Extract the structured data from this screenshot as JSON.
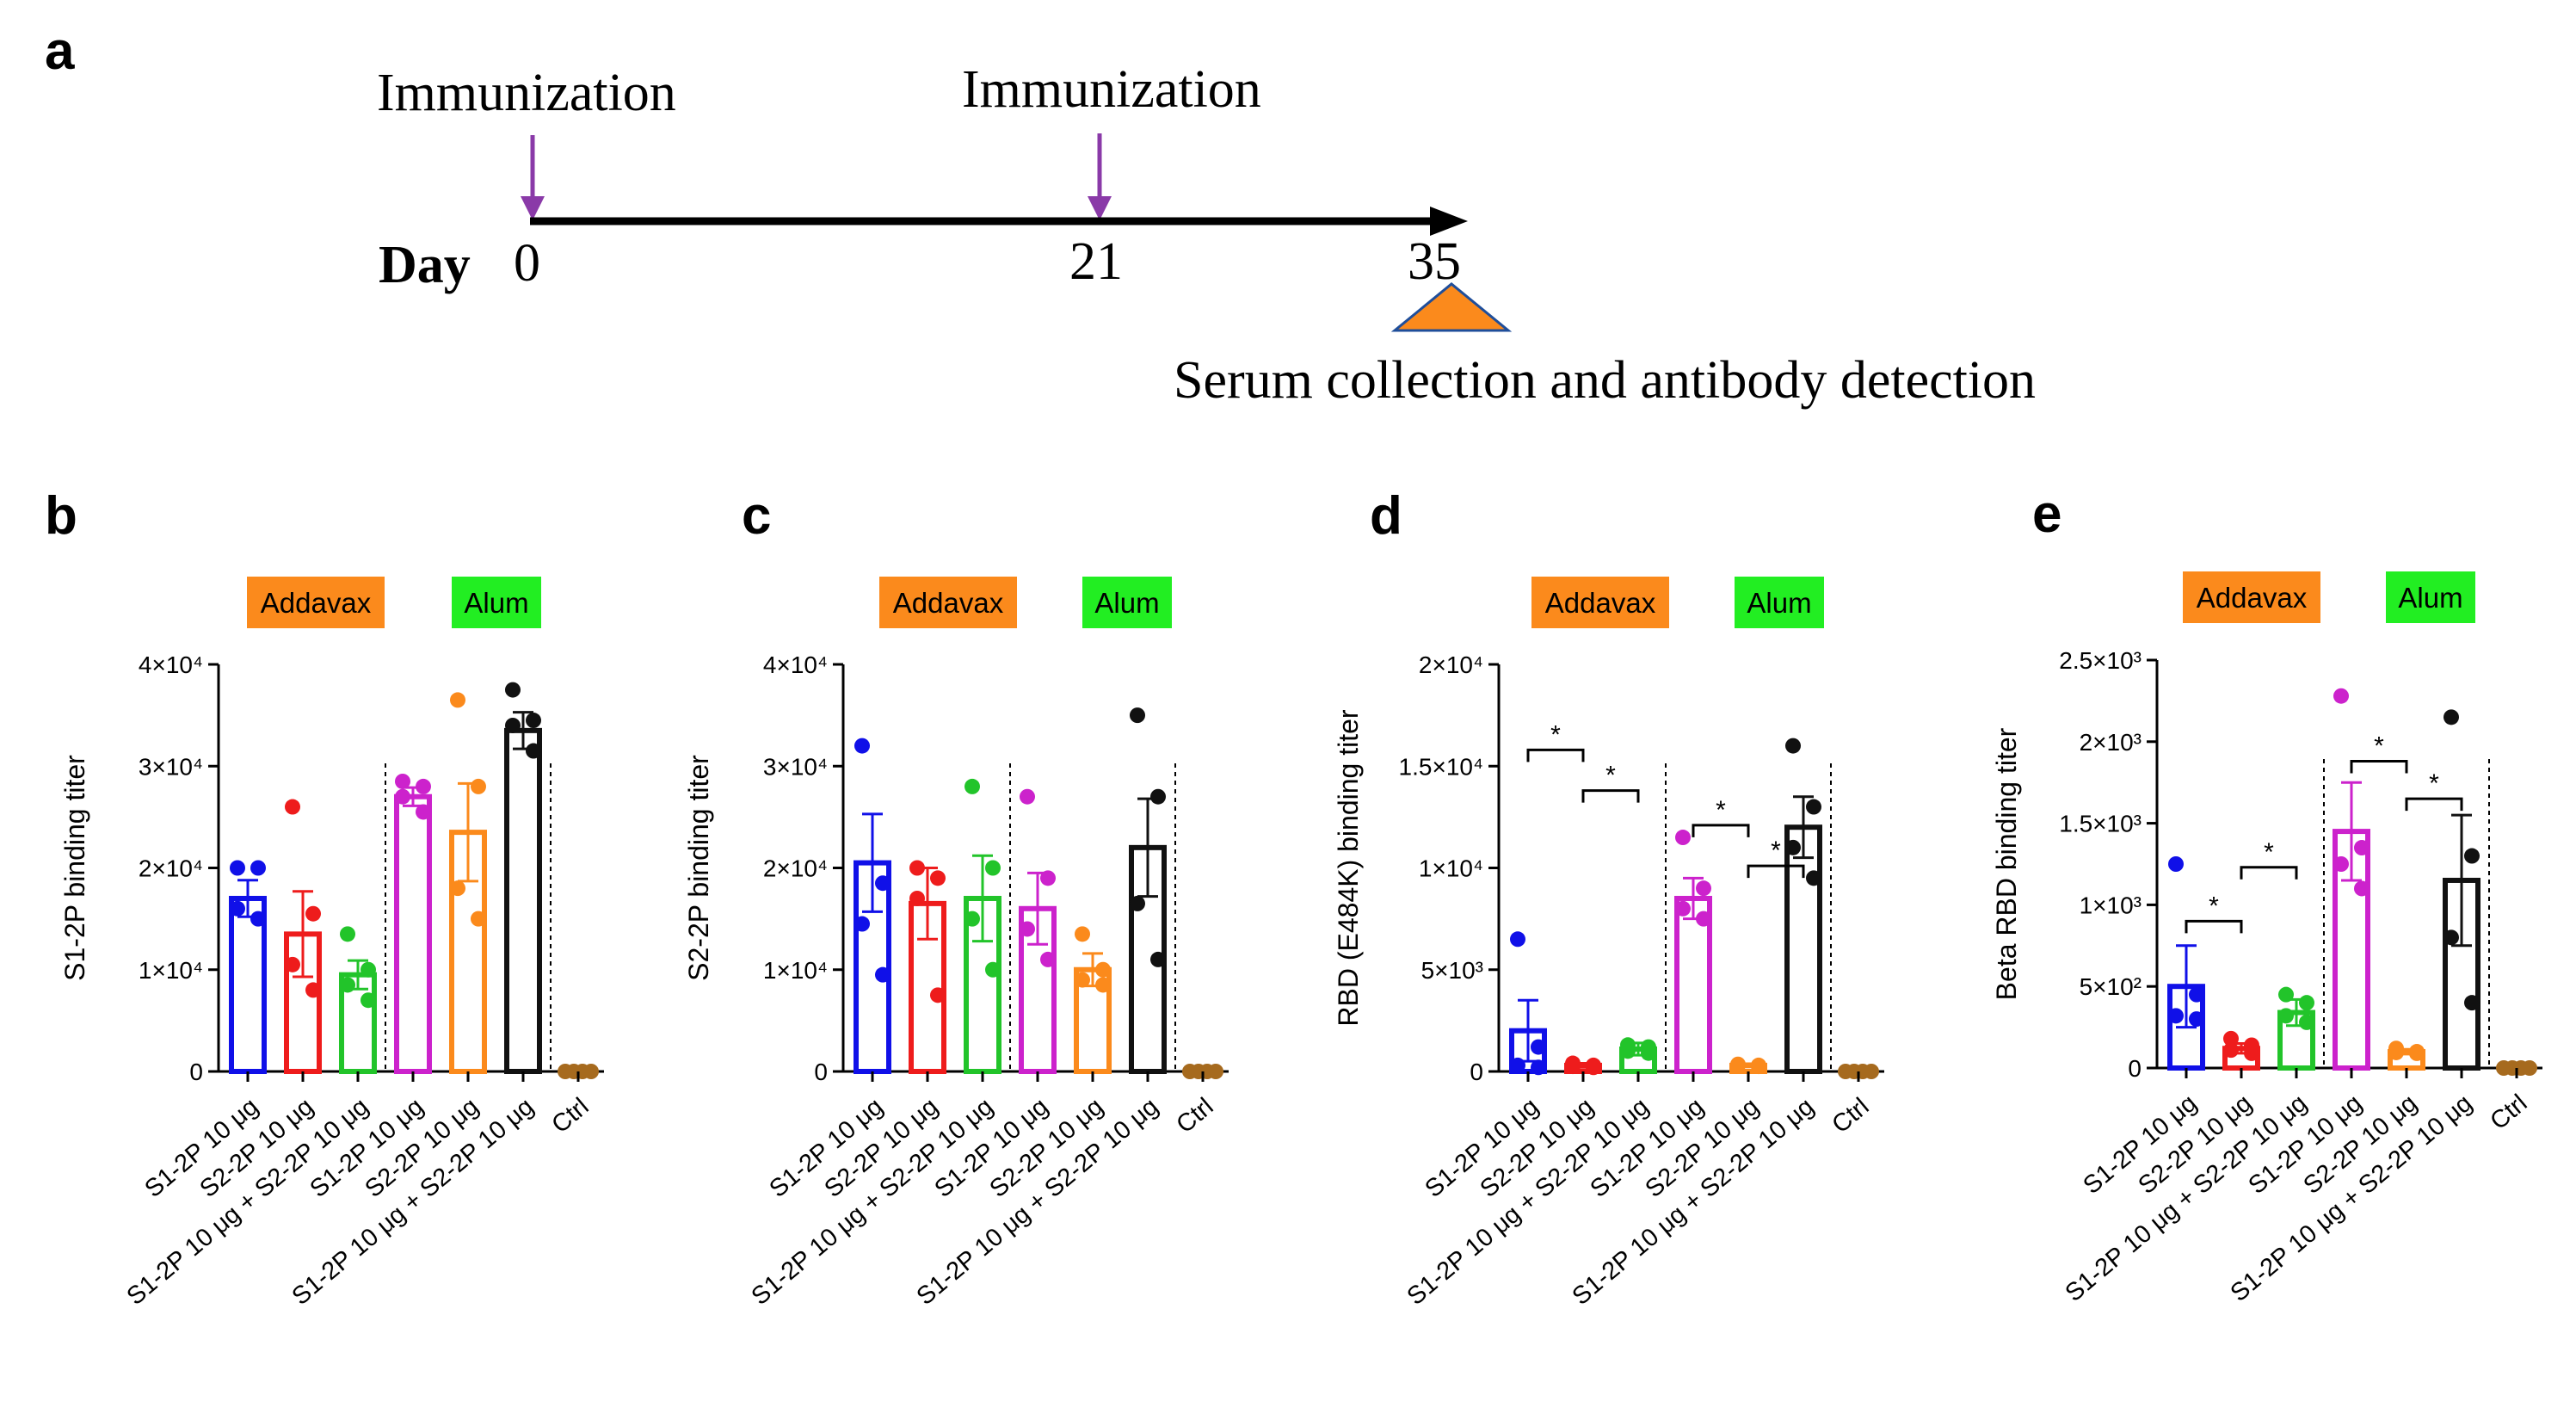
{
  "colors": {
    "blue": "#1010e8",
    "red": "#ee1c1c",
    "green": "#22c42a",
    "magenta": "#cc22cc",
    "orange": "#fb8a1c",
    "black": "#111111",
    "brown": "#a66a1e",
    "purple": "#8a3aa8",
    "addavax_bg": "#fb8a1c",
    "alum_bg": "#22ee22"
  },
  "panel_a": {
    "letter": "a",
    "day_label": "Day",
    "days": [
      "0",
      "21",
      "35"
    ],
    "immunization_label": "Immunization",
    "immunization_days": [
      "0",
      "21"
    ],
    "serum_label": "Serum collection and antibody detection"
  },
  "chart_data": [
    {
      "panel": "b",
      "type": "bar",
      "ylabel": "S1-2P binding titer",
      "ylim": [
        0,
        40000
      ],
      "yticks": [
        0,
        10000,
        20000,
        30000,
        40000
      ],
      "ytick_labels": [
        "0",
        "1×10⁴",
        "2×10⁴",
        "3×10⁴",
        "4×10⁴"
      ],
      "adjuvant_labels": [
        "Addavax",
        "Alum"
      ],
      "categories": [
        "S1-2P 10 μg",
        "S2-2P 10 μg",
        "S1-2P 10 μg + S2-2P 10 μg",
        "S1-2P 10 μg",
        "S2-2P 10 μg",
        "S1-2P 10 μg + S2-2P 10 μg",
        "Ctrl"
      ],
      "colors": [
        "blue",
        "red",
        "green",
        "magenta",
        "orange",
        "black",
        "brown"
      ],
      "values": [
        17000,
        13500,
        9500,
        27000,
        23500,
        33500,
        0
      ],
      "errors": [
        1800,
        4200,
        1400,
        900,
        4800,
        1800,
        0
      ],
      "points": [
        [
          20000,
          20000,
          16000,
          15000
        ],
        [
          26000,
          15500,
          10500,
          8000
        ],
        [
          13500,
          10000,
          8500,
          7000
        ],
        [
          28500,
          28000,
          27000,
          25500
        ],
        [
          36500,
          28000,
          18000,
          15000
        ],
        [
          37500,
          34500,
          34000,
          31500
        ],
        [
          0,
          0,
          0,
          0
        ]
      ],
      "significance": []
    },
    {
      "panel": "c",
      "type": "bar",
      "ylabel": "S2-2P binding titer",
      "ylim": [
        0,
        40000
      ],
      "yticks": [
        0,
        10000,
        20000,
        30000,
        40000
      ],
      "ytick_labels": [
        "0",
        "1×10⁴",
        "2×10⁴",
        "3×10⁴",
        "4×10⁴"
      ],
      "adjuvant_labels": [
        "Addavax",
        "Alum"
      ],
      "categories": [
        "S1-2P 10 μg",
        "S2-2P 10 μg",
        "S1-2P 10 μg + S2-2P 10 μg",
        "S1-2P 10 μg",
        "S2-2P 10 μg",
        "S1-2P 10 μg + S2-2P 10 μg",
        "Ctrl"
      ],
      "colors": [
        "blue",
        "red",
        "green",
        "magenta",
        "orange",
        "black",
        "brown"
      ],
      "values": [
        20500,
        16500,
        17000,
        16000,
        10000,
        22000,
        0
      ],
      "errors": [
        4800,
        3500,
        4200,
        3500,
        1600,
        4800,
        0
      ],
      "points": [
        [
          32000,
          18500,
          14500,
          9500
        ],
        [
          20000,
          19000,
          17000,
          7500
        ],
        [
          28000,
          20000,
          15000,
          10000
        ],
        [
          27000,
          19000,
          14000,
          11000
        ],
        [
          13500,
          10000,
          9000,
          8500
        ],
        [
          35000,
          27000,
          16500,
          11000
        ],
        [
          0,
          0,
          0,
          0
        ]
      ],
      "significance": []
    },
    {
      "panel": "d",
      "type": "bar",
      "ylabel": "RBD (E484K) binding titer",
      "ylim": [
        0,
        20000
      ],
      "yticks": [
        0,
        5000,
        10000,
        15000,
        20000
      ],
      "ytick_labels": [
        "0",
        "5×10³",
        "1×10⁴",
        "1.5×10⁴",
        "2×10⁴"
      ],
      "adjuvant_labels": [
        "Addavax",
        "Alum"
      ],
      "categories": [
        "S1-2P 10 μg",
        "S2-2P 10 μg",
        "S1-2P 10 μg + S2-2P 10 μg",
        "S1-2P 10 μg",
        "S2-2P 10 μg",
        "S1-2P 10 μg + S2-2P 10 μg",
        "Ctrl"
      ],
      "colors": [
        "blue",
        "red",
        "green",
        "magenta",
        "orange",
        "black",
        "brown"
      ],
      "values": [
        2000,
        300,
        1100,
        8500,
        300,
        12000,
        0
      ],
      "errors": [
        1500,
        100,
        300,
        1000,
        80,
        1500,
        0
      ],
      "points": [
        [
          6500,
          1200,
          300,
          200
        ],
        [
          400,
          300,
          250,
          200
        ],
        [
          1300,
          1200,
          1000,
          900
        ],
        [
          11500,
          9000,
          8000,
          7500
        ],
        [
          350,
          300,
          300,
          250
        ],
        [
          16000,
          13000,
          11000,
          9500
        ],
        [
          0,
          0,
          0,
          0
        ]
      ],
      "significance": [
        {
          "from": 0,
          "to": 1,
          "value": 15800,
          "label": "*"
        },
        {
          "from": 1,
          "to": 2,
          "value": 13800,
          "label": "*"
        },
        {
          "from": 3,
          "to": 4,
          "value": 12100,
          "label": "*"
        },
        {
          "from": 4,
          "to": 5,
          "value": 10100,
          "label": "*"
        }
      ]
    },
    {
      "panel": "e",
      "type": "bar",
      "ylabel": "Beta RBD binding titer",
      "ylim": [
        0,
        2500
      ],
      "yticks": [
        0,
        500,
        1000,
        1500,
        2000,
        2500
      ],
      "ytick_labels": [
        "0",
        "5×10²",
        "1×10³",
        "1.5×10³",
        "2×10³",
        "2.5×10³"
      ],
      "adjuvant_labels": [
        "Addavax",
        "Alum"
      ],
      "categories": [
        "S1-2P 10 μg",
        "S2-2P 10 μg",
        "S1-2P 10 μg + S2-2P 10 μg",
        "S1-2P 10 μg",
        "S2-2P 10 μg",
        "S1-2P 10 μg + S2-2P 10 μg",
        "Ctrl"
      ],
      "colors": [
        "blue",
        "red",
        "green",
        "magenta",
        "orange",
        "black",
        "brown"
      ],
      "values": [
        500,
        120,
        340,
        1450,
        100,
        1150,
        0
      ],
      "errors": [
        250,
        30,
        80,
        300,
        15,
        400,
        0
      ],
      "points": [
        [
          1250,
          450,
          320,
          300
        ],
        [
          180,
          140,
          110,
          90
        ],
        [
          450,
          400,
          320,
          280
        ],
        [
          2280,
          1350,
          1250,
          1100
        ],
        [
          120,
          100,
          95,
          90
        ],
        [
          2150,
          1300,
          800,
          400
        ],
        [
          0,
          0,
          0,
          0
        ]
      ],
      "significance": [
        {
          "from": 0,
          "to": 1,
          "value": 900,
          "label": "*"
        },
        {
          "from": 1,
          "to": 2,
          "value": 1230,
          "label": "*"
        },
        {
          "from": 3,
          "to": 4,
          "value": 1880,
          "label": "*"
        },
        {
          "from": 4,
          "to": 5,
          "value": 1650,
          "label": "*"
        }
      ]
    }
  ]
}
